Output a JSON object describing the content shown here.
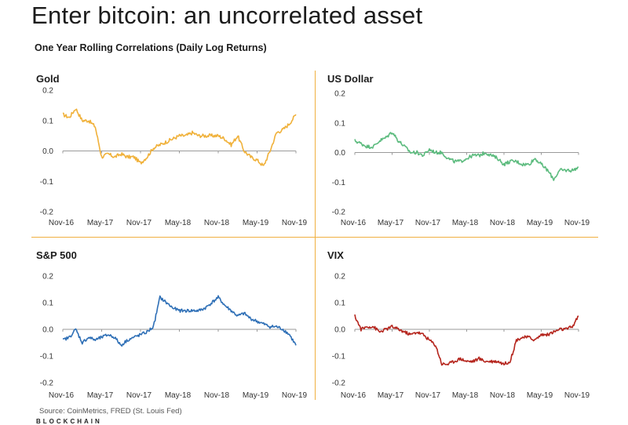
{
  "header": {
    "title": "Enter bitcoin: an uncorrelated asset",
    "subtitle": "One Year Rolling Correlations (Daily Log Returns)"
  },
  "footer": {
    "source": "Source: CoinMetrics, FRED (St. Louis Fed)",
    "brand": "BLOCKCHAIN"
  },
  "chart_data": [
    {
      "type": "line",
      "title": "Gold",
      "color": "#f0b13a",
      "x_ticks": [
        "Nov-16",
        "May-17",
        "Nov-17",
        "May-18",
        "Nov-18",
        "May-19",
        "Nov-19"
      ],
      "y_ticks": [
        "0.2",
        "0.1",
        "0.0",
        "-0.1",
        "-0.2"
      ],
      "ylim": [
        -0.2,
        0.2
      ],
      "xlim": [
        "2016-11",
        "2019-11"
      ],
      "series": [
        {
          "x": [
            "2016-11",
            "2016-12",
            "2017-01",
            "2017-02",
            "2017-03",
            "2017-04",
            "2017-05",
            "2017-06",
            "2017-07",
            "2017-08",
            "2017-09",
            "2017-10",
            "2017-11",
            "2017-12",
            "2018-01",
            "2018-02",
            "2018-03",
            "2018-04",
            "2018-05",
            "2018-06",
            "2018-07",
            "2018-08",
            "2018-09",
            "2018-10",
            "2018-11",
            "2018-12",
            "2019-01",
            "2019-02",
            "2019-03",
            "2019-04",
            "2019-05",
            "2019-06",
            "2019-07",
            "2019-08",
            "2019-09",
            "2019-10",
            "2019-11"
          ],
          "y": [
            0.12,
            0.11,
            0.14,
            0.1,
            0.1,
            0.08,
            -0.02,
            -0.01,
            -0.02,
            -0.01,
            -0.02,
            -0.02,
            -0.04,
            -0.02,
            0.01,
            0.02,
            0.03,
            0.04,
            0.05,
            0.05,
            0.06,
            0.05,
            0.05,
            0.05,
            0.05,
            0.04,
            0.02,
            0.05,
            0.0,
            -0.02,
            -0.03,
            -0.05,
            0.0,
            0.06,
            0.07,
            0.09,
            0.12
          ]
        }
      ]
    },
    {
      "type": "line",
      "title": "US Dollar",
      "color": "#5cbb7e",
      "x_ticks": [
        "Nov-16",
        "May-17",
        "Nov-17",
        "May-18",
        "Nov-18",
        "May-19",
        "Nov-19"
      ],
      "y_ticks": [
        "0.2",
        "0.1",
        "0.0",
        "-0.1",
        "-0.2"
      ],
      "ylim": [
        -0.2,
        0.2
      ],
      "xlim": [
        "2016-11",
        "2019-11"
      ],
      "series": [
        {
          "x": [
            "2016-11",
            "2016-12",
            "2017-01",
            "2017-02",
            "2017-03",
            "2017-04",
            "2017-05",
            "2017-06",
            "2017-07",
            "2017-08",
            "2017-09",
            "2017-10",
            "2017-11",
            "2017-12",
            "2018-01",
            "2018-02",
            "2018-03",
            "2018-04",
            "2018-05",
            "2018-06",
            "2018-07",
            "2018-08",
            "2018-09",
            "2018-10",
            "2018-11",
            "2018-12",
            "2019-01",
            "2019-02",
            "2019-03",
            "2019-04",
            "2019-05",
            "2019-06",
            "2019-07",
            "2019-08",
            "2019-09",
            "2019-10",
            "2019-11"
          ],
          "y": [
            0.04,
            0.03,
            0.02,
            0.02,
            0.04,
            0.05,
            0.07,
            0.04,
            0.02,
            0.0,
            0.0,
            -0.01,
            0.01,
            0.0,
            0.0,
            -0.02,
            -0.03,
            -0.03,
            -0.02,
            -0.01,
            -0.01,
            0.0,
            -0.01,
            -0.02,
            -0.04,
            -0.03,
            -0.03,
            -0.04,
            -0.04,
            -0.02,
            -0.04,
            -0.06,
            -0.09,
            -0.06,
            -0.06,
            -0.06,
            -0.05
          ]
        }
      ]
    },
    {
      "type": "line",
      "title": "S&P 500",
      "color": "#2e6fb6",
      "x_ticks": [
        "Nov-16",
        "May-17",
        "Nov-17",
        "May-18",
        "Nov-18",
        "May-19",
        "Nov-19"
      ],
      "y_ticks": [
        "0.2",
        "0.1",
        "0.0",
        "-0.1",
        "-0.2"
      ],
      "ylim": [
        -0.2,
        0.2
      ],
      "xlim": [
        "2016-11",
        "2019-11"
      ],
      "series": [
        {
          "x": [
            "2016-11",
            "2016-12",
            "2017-01",
            "2017-02",
            "2017-03",
            "2017-04",
            "2017-05",
            "2017-06",
            "2017-07",
            "2017-08",
            "2017-09",
            "2017-10",
            "2017-11",
            "2017-12",
            "2018-01",
            "2018-02",
            "2018-03",
            "2018-04",
            "2018-05",
            "2018-06",
            "2018-07",
            "2018-08",
            "2018-09",
            "2018-10",
            "2018-11",
            "2018-12",
            "2019-01",
            "2019-02",
            "2019-03",
            "2019-04",
            "2019-05",
            "2019-06",
            "2019-07",
            "2019-08",
            "2019-09",
            "2019-10",
            "2019-11"
          ],
          "y": [
            -0.04,
            -0.03,
            0.0,
            -0.05,
            -0.03,
            -0.04,
            -0.03,
            -0.02,
            -0.03,
            -0.06,
            -0.04,
            -0.03,
            -0.02,
            -0.01,
            0.01,
            0.12,
            0.1,
            0.08,
            0.07,
            0.07,
            0.07,
            0.07,
            0.08,
            0.1,
            0.12,
            0.09,
            0.07,
            0.05,
            0.06,
            0.04,
            0.03,
            0.02,
            0.01,
            0.01,
            0.0,
            -0.02,
            -0.06
          ]
        }
      ]
    },
    {
      "type": "line",
      "title": "VIX",
      "color": "#b5251d",
      "x_ticks": [
        "Nov-16",
        "May-17",
        "Nov-17",
        "May-18",
        "Nov-18",
        "May-19",
        "Nov-19"
      ],
      "y_ticks": [
        "0.2",
        "0.1",
        "0.0",
        "-0.1",
        "-0.2"
      ],
      "ylim": [
        -0.2,
        0.2
      ],
      "xlim": [
        "2016-11",
        "2019-11"
      ],
      "series": [
        {
          "x": [
            "2016-11",
            "2016-12",
            "2017-01",
            "2017-02",
            "2017-03",
            "2017-04",
            "2017-05",
            "2017-06",
            "2017-07",
            "2017-08",
            "2017-09",
            "2017-10",
            "2017-11",
            "2017-12",
            "2018-01",
            "2018-02",
            "2018-03",
            "2018-04",
            "2018-05",
            "2018-06",
            "2018-07",
            "2018-08",
            "2018-09",
            "2018-10",
            "2018-11",
            "2018-12",
            "2019-01",
            "2019-02",
            "2019-03",
            "2019-04",
            "2019-05",
            "2019-06",
            "2019-07",
            "2019-08",
            "2019-09",
            "2019-10",
            "2019-11"
          ],
          "y": [
            0.05,
            0.0,
            0.01,
            0.01,
            -0.01,
            0.0,
            0.01,
            0.0,
            -0.01,
            -0.02,
            -0.01,
            -0.02,
            -0.04,
            -0.06,
            -0.13,
            -0.13,
            -0.12,
            -0.11,
            -0.12,
            -0.12,
            -0.11,
            -0.12,
            -0.12,
            -0.12,
            -0.13,
            -0.12,
            -0.04,
            -0.03,
            -0.03,
            -0.04,
            -0.02,
            -0.02,
            -0.01,
            0.0,
            0.0,
            0.01,
            0.05
          ]
        }
      ]
    }
  ]
}
